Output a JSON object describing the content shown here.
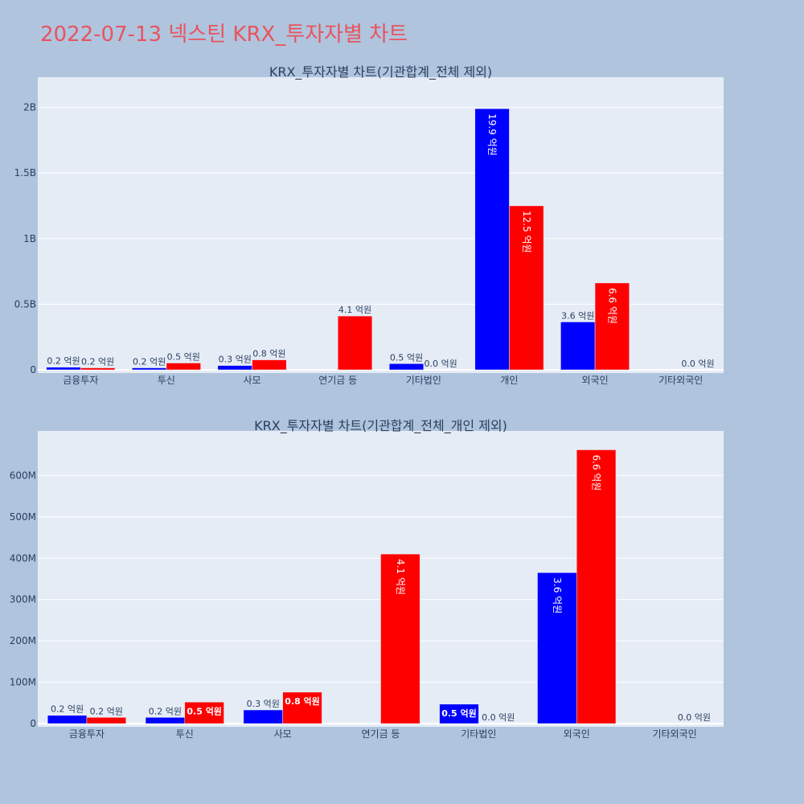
{
  "page_title": "2022-07-13 넥스틴 KRX_투자자별 차트",
  "colors": {
    "series1": "#0000ff",
    "series2": "#ff0000",
    "plot_bg": "#e5ecf6",
    "page_bg": "#b0c4de",
    "title": "#e8545f"
  },
  "chart_data": [
    {
      "type": "bar",
      "title": "KRX_투자자별 차트(기관합계_전체 제외)",
      "categories": [
        "금융투자",
        "투신",
        "사모",
        "연기금 등",
        "기타법인",
        "개인",
        "외국인",
        "기타외국인"
      ],
      "series": [
        {
          "values": [
            20000000,
            15000000,
            33000000,
            0,
            47000000,
            1990000000,
            365000000,
            0
          ],
          "labels": [
            "0.2 억원",
            "0.2 억원",
            "0.3 억원",
            "",
            "0.5 억원",
            "19.9 억원",
            "3.6 억원",
            ""
          ]
        },
        {
          "values": [
            15000000,
            52000000,
            76000000,
            410000000,
            0,
            1250000000,
            662000000,
            0
          ],
          "labels": [
            "0.2 억원",
            "0.5 억원",
            "0.8 억원",
            "4.1 억원",
            "0.0 억원",
            "12.5 억원",
            "6.6 억원",
            "0.0 억원"
          ]
        }
      ],
      "ylim": [
        0,
        2120000000
      ],
      "yticks": [
        0,
        500000000,
        1000000000,
        1500000000,
        2000000000
      ],
      "ytick_labels": [
        "0",
        "0.5B",
        "1B",
        "1.5B",
        "2B"
      ],
      "grid": true
    },
    {
      "type": "bar",
      "title": "KRX_투자자별 차트(기관합계_전체_개인 제외)",
      "categories": [
        "금융투자",
        "투신",
        "사모",
        "연기금 등",
        "기타법인",
        "외국인",
        "기타외국인"
      ],
      "series": [
        {
          "values": [
            20000000,
            15000000,
            33000000,
            0,
            47000000,
            365000000,
            0
          ],
          "labels": [
            "0.2 억원",
            "0.2 억원",
            "0.3 억원",
            "",
            "0.5 억원",
            "3.6 억원",
            ""
          ]
        },
        {
          "values": [
            15000000,
            52000000,
            76000000,
            410000000,
            0,
            662000000,
            0
          ],
          "labels": [
            "0.2 억원",
            "0.5 억원",
            "0.8 억원",
            "4.1 억원",
            "0.0 억원",
            "6.6 억원",
            "0.0 억원"
          ]
        }
      ],
      "ylim": [
        0,
        696000000
      ],
      "yticks": [
        0,
        100000000,
        200000000,
        300000000,
        400000000,
        500000000,
        600000000
      ],
      "ytick_labels": [
        "0",
        "100M",
        "200M",
        "300M",
        "400M",
        "500M",
        "600M"
      ],
      "grid": true
    }
  ]
}
